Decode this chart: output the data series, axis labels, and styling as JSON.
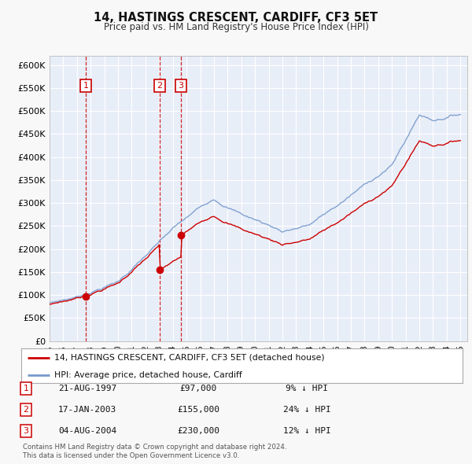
{
  "title": "14, HASTINGS CRESCENT, CARDIFF, CF3 5ET",
  "subtitle": "Price paid vs. HM Land Registry's House Price Index (HPI)",
  "legend_label_red": "14, HASTINGS CRESCENT, CARDIFF, CF3 5ET (detached house)",
  "legend_label_blue": "HPI: Average price, detached house, Cardiff",
  "footer_line1": "Contains HM Land Registry data © Crown copyright and database right 2024.",
  "footer_line2": "This data is licensed under the Open Government Licence v3.0.",
  "transactions": [
    {
      "num": 1,
      "date": "21-AUG-1997",
      "price": 97000,
      "pct": "9%",
      "dir": "↓",
      "year": 1997.64
    },
    {
      "num": 2,
      "date": "17-JAN-2003",
      "price": 155000,
      "pct": "24%",
      "dir": "↓",
      "year": 2003.05
    },
    {
      "num": 3,
      "date": "04-AUG-2004",
      "price": 230000,
      "pct": "12%",
      "dir": "↓",
      "year": 2004.6
    }
  ],
  "ylim": [
    0,
    620000
  ],
  "ytick_vals": [
    0,
    50000,
    100000,
    150000,
    200000,
    250000,
    300000,
    350000,
    400000,
    450000,
    500000,
    550000,
    600000
  ],
  "xmin": 1995,
  "xmax": 2025.5,
  "background_color": "#f0f0f0",
  "plot_bg": "#e8eef8",
  "grid_color": "#ffffff",
  "red_color": "#cc0000",
  "blue_color": "#7799cc",
  "vline_color": "#cc0000",
  "box_color": "#cc0000",
  "outer_bg": "#f8f8f8"
}
